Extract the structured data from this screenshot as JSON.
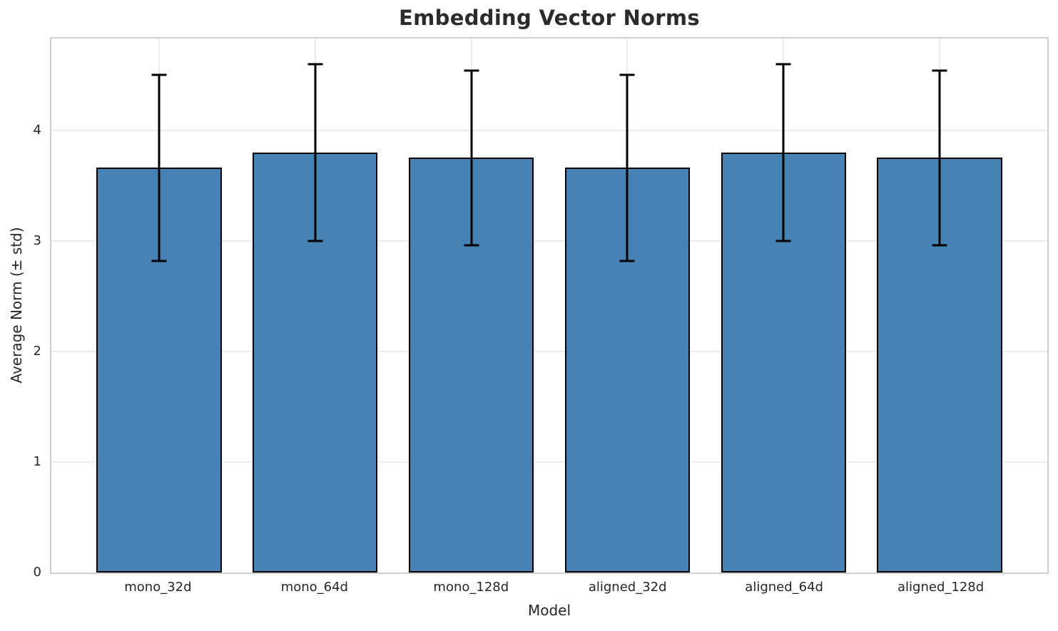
{
  "chart_data": {
    "type": "bar",
    "title": "Embedding Vector Norms",
    "xlabel": "Model",
    "ylabel": "Average Norm (± std)",
    "categories": [
      "mono_32d",
      "mono_64d",
      "mono_128d",
      "aligned_32d",
      "aligned_64d",
      "aligned_128d"
    ],
    "values": [
      3.66,
      3.8,
      3.75,
      3.66,
      3.8,
      3.75
    ],
    "errors": [
      0.84,
      0.8,
      0.79,
      0.84,
      0.8,
      0.79
    ],
    "error_upper_tips": [
      4.5,
      4.6,
      4.54,
      4.5,
      4.6,
      4.54
    ],
    "error_lower_tips": [
      2.82,
      3.0,
      2.96,
      2.82,
      3.0,
      2.96
    ],
    "yticks": [
      0,
      1,
      2,
      3,
      4
    ],
    "ylim": [
      0,
      4.83
    ],
    "xlim": [
      -0.69,
      5.69
    ],
    "bar_width": 0.8,
    "grid": "horizontal and vertical, light gray, behind bars",
    "legend": "none",
    "colors": {
      "bar_fill": "#4682b4",
      "bar_edge": "#000000",
      "error_bar": "#000000",
      "grid_line": "#ececec",
      "spine": "#cfcfcf",
      "title_text": "#2b2b2b",
      "label_text": "#262626"
    }
  }
}
